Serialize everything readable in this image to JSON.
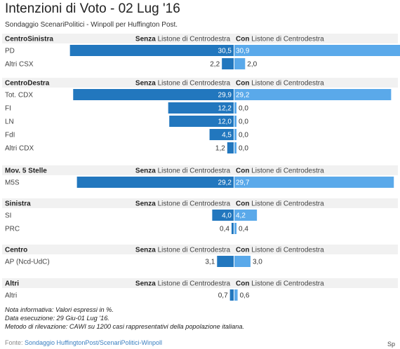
{
  "header": {
    "title": "Intenzioni di Voto - 02 Lug '16",
    "subtitle": "Sondaggio ScenariPolitici - Winpoll per Huffington Post."
  },
  "columns": {
    "senza_bold": "Senza",
    "con_bold": "Con",
    "suffix": " Listone di Centrodestra"
  },
  "colors": {
    "senza": "#2277be",
    "con": "#5aa9ea",
    "group_bg": "#f1f1f1"
  },
  "chart_data": {
    "type": "bar",
    "layout": "diverging-horizontal",
    "series": [
      {
        "name": "Senza Listone di Centrodestra",
        "color": "#2277be"
      },
      {
        "name": "Con Listone di Centrodestra",
        "color": "#5aa9ea"
      }
    ],
    "groups": [
      {
        "name": "CentroSinistra",
        "rows": [
          {
            "label": "PD",
            "senza": 30.5,
            "con": 30.9,
            "senza_text": "30,5",
            "con_text": "30,9"
          },
          {
            "label": "Altri CSX",
            "senza": 2.2,
            "con": 2.0,
            "senza_text": "2,2",
            "con_text": "2,0"
          }
        ]
      },
      {
        "name": "CentroDestra",
        "rows": [
          {
            "label": "Tot. CDX",
            "senza": 29.9,
            "con": 29.2,
            "senza_text": "29,9",
            "con_text": "29,2"
          },
          {
            "label": "FI",
            "senza": 12.2,
            "con": 0.0,
            "senza_text": "12,2",
            "con_text": "0,0"
          },
          {
            "label": "LN",
            "senza": 12.0,
            "con": 0.0,
            "senza_text": "12,0",
            "con_text": "0,0"
          },
          {
            "label": "FdI",
            "senza": 4.5,
            "con": 0.0,
            "senza_text": "4,5",
            "con_text": "0,0"
          },
          {
            "label": "Altri CDX",
            "senza": 1.2,
            "con": 0.0,
            "senza_text": "1,2",
            "con_text": "0,0"
          }
        ]
      },
      {
        "name": "Mov. 5 Stelle",
        "rows": [
          {
            "label": "M5S",
            "senza": 29.2,
            "con": 29.7,
            "senza_text": "29,2",
            "con_text": "29,7"
          }
        ]
      },
      {
        "name": "Sinistra",
        "rows": [
          {
            "label": "SI",
            "senza": 4.0,
            "con": 4.2,
            "senza_text": "4,0",
            "con_text": "4,2"
          },
          {
            "label": "PRC",
            "senza": 0.4,
            "con": 0.4,
            "senza_text": "0,4",
            "con_text": "0,4"
          }
        ]
      },
      {
        "name": "Centro",
        "rows": [
          {
            "label": "AP (Ncd-UdC)",
            "senza": 3.1,
            "con": 3.0,
            "senza_text": "3,1",
            "con_text": "3,0"
          }
        ]
      },
      {
        "name": "Altri",
        "rows": [
          {
            "label": "Altri",
            "senza": 0.7,
            "con": 0.6,
            "senza_text": "0,7",
            "con_text": "0,6"
          }
        ]
      }
    ]
  },
  "notes": [
    "Nota informativa: Valori espressi in %.",
    "Data esecuzione: 29 Giu-01 Lug '16.",
    "Metodo di rilevazione: CAWI su 1200 casi rappresentativi della popolazione italiana."
  ],
  "footer": {
    "source_label": "Fonte: ",
    "source_link": "Sondaggio HuffingtonPost/ScenariPolitici-Winpoll",
    "credit": "Sp"
  }
}
